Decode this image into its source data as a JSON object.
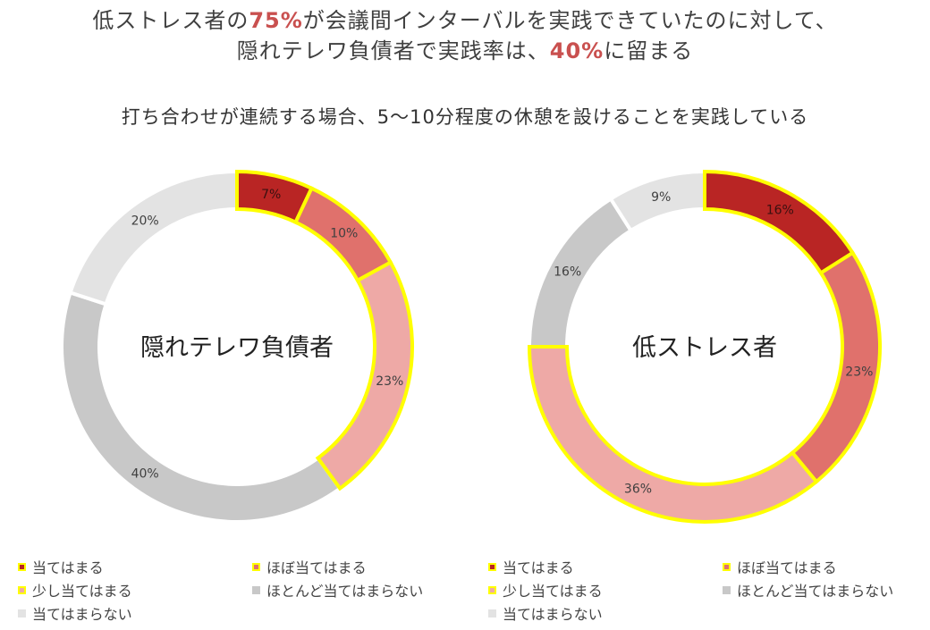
{
  "headline": {
    "line1_pre": "低ストレス者の",
    "line1_highlight": "75%",
    "line1_post": "が会議間インターバルを実践できていたのに対して、",
    "line2_pre": "隠れテレワ負債者で実践率は、",
    "line2_highlight": "40%",
    "line2_post": "に留まる"
  },
  "subtitle": "打ち合わせが連続する場合、5〜10分程度の休憩を設けることを実践している",
  "colors": {
    "highlight_text": "#c9504f",
    "outline_yellow": "#ffff00",
    "category_colors": [
      "#b92524",
      "#e0716c",
      "#eea9a6",
      "#c8c8c8",
      "#e3e3e3"
    ]
  },
  "legend_labels": [
    "当てはまる",
    "ほぼ当てはまる",
    "少し当てはまる",
    "ほとんど当てはまらない",
    "当てはまらない"
  ],
  "chart_data": [
    {
      "type": "pie",
      "variant": "donut",
      "center_label": "隠れテレワ負債者",
      "categories": [
        "当てはまる",
        "ほぼ当てはまる",
        "少し当てはまる",
        "ほとんど当てはまらない",
        "当てはまらない"
      ],
      "values": [
        7,
        10,
        23,
        40,
        20
      ],
      "data_labels": [
        "7%",
        "10%",
        "23%",
        "40%",
        "20%"
      ],
      "highlighted_categories": [
        "当てはまる",
        "ほぼ当てはまる",
        "少し当てはまる"
      ],
      "legend_position": "bottom"
    },
    {
      "type": "pie",
      "variant": "donut",
      "center_label": "低ストレス者",
      "categories": [
        "当てはまる",
        "ほぼ当てはまる",
        "少し当てはまる",
        "ほとんど当てはまらない",
        "当てはまらない"
      ],
      "values": [
        16,
        23,
        36,
        16,
        9
      ],
      "data_labels": [
        "16%",
        "23%",
        "36%",
        "16%",
        "9%"
      ],
      "highlighted_categories": [
        "当てはまる",
        "ほぼ当てはまる",
        "少し当てはまる"
      ],
      "legend_position": "bottom"
    }
  ]
}
